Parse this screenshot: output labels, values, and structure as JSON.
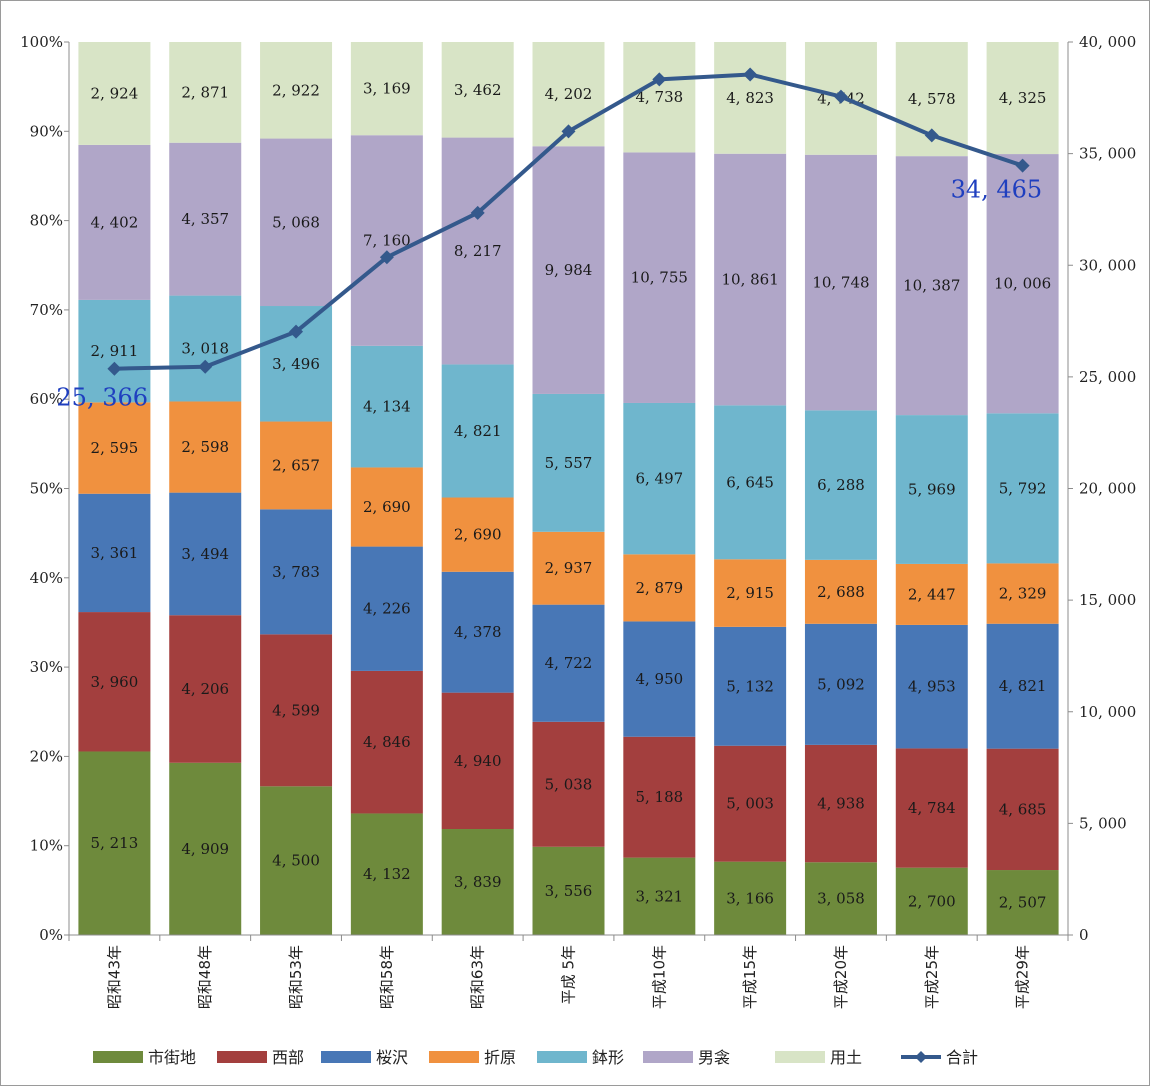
{
  "chart_data": {
    "type": "bar",
    "stacked": true,
    "normalized": true,
    "categories": [
      "昭和43年",
      "昭和48年",
      "昭和53年",
      "昭和58年",
      "昭和63年",
      "平成 5年",
      "平成10年",
      "平成15年",
      "平成20年",
      "平成25年",
      "平成29年"
    ],
    "series": [
      {
        "name": "市街地",
        "color": "#6e8a3c",
        "values": [
          5213,
          4909,
          4500,
          4132,
          3839,
          3556,
          3321,
          3166,
          3058,
          2700,
          2507
        ],
        "labels": [
          "5, 213",
          "4, 909",
          "4, 500",
          "4, 132",
          "3, 839",
          "3, 556",
          "3, 321",
          "3, 166",
          "3, 058",
          "2, 700",
          "2, 507"
        ]
      },
      {
        "name": "西部",
        "color": "#a33f3e",
        "values": [
          3960,
          4206,
          4599,
          4846,
          4940,
          5038,
          5188,
          5003,
          4938,
          4784,
          4685
        ],
        "labels": [
          "3, 960",
          "4, 206",
          "4, 599",
          "4, 846",
          "4, 940",
          "5, 038",
          "5, 188",
          "5, 003",
          "4, 938",
          "4, 784",
          "4, 685"
        ]
      },
      {
        "name": "桜沢",
        "color": "#4877b6",
        "values": [
          3361,
          3494,
          3783,
          4226,
          4378,
          4722,
          4950,
          5132,
          5092,
          4953,
          4821
        ],
        "labels": [
          "3, 361",
          "3, 494",
          "3, 783",
          "4, 226",
          "4, 378",
          "4, 722",
          "4, 950",
          "5, 132",
          "5, 092",
          "4, 953",
          "4, 821"
        ]
      },
      {
        "name": "折原",
        "color": "#f0913f",
        "values": [
          2595,
          2598,
          2657,
          2690,
          2690,
          2937,
          2879,
          2915,
          2688,
          2447,
          2329
        ],
        "labels": [
          "2, 595",
          "2, 598",
          "2, 657",
          "2, 690",
          "2, 690",
          "2, 937",
          "2, 879",
          "2, 915",
          "2, 688",
          "2, 447",
          "2, 329"
        ]
      },
      {
        "name": "鉢形",
        "color": "#6fb6cd",
        "values": [
          2911,
          3018,
          3496,
          4134,
          4821,
          5557,
          6497,
          6645,
          6288,
          5969,
          5792
        ],
        "labels": [
          "2, 911",
          "3, 018",
          "3, 496",
          "4, 134",
          "4, 821",
          "5, 557",
          "6, 497",
          "6, 645",
          "6, 288",
          "5, 969",
          "5, 792"
        ]
      },
      {
        "name": "男衾",
        "color": "#b0a6c8",
        "values": [
          4402,
          4357,
          5068,
          7160,
          8217,
          9984,
          10755,
          10861,
          10748,
          10387,
          10006
        ],
        "labels": [
          "4, 402",
          "4, 357",
          "5, 068",
          "7, 160",
          "8, 217",
          "9, 984",
          "10, 755",
          "10, 861",
          "10, 748",
          "10, 387",
          "10, 006"
        ]
      },
      {
        "name": "用土",
        "color": "#d8e4c6",
        "values": [
          2924,
          2871,
          2922,
          3169,
          3462,
          4202,
          4738,
          4823,
          4742,
          4578,
          4325
        ],
        "labels": [
          "2, 924",
          "2, 871",
          "2, 922",
          "3, 169",
          "3, 462",
          "4, 202",
          "4, 738",
          "4, 823",
          "4, 742",
          "4, 578",
          "4, 325"
        ]
      }
    ],
    "line": {
      "name": "合計",
      "color": "#34598c",
      "axis": "right",
      "values": [
        25366,
        25453,
        27025,
        30357,
        32347,
        35996,
        38328,
        38545,
        37554,
        35818,
        34465
      ]
    },
    "callouts": [
      {
        "index": 0,
        "text": "25, 366"
      },
      {
        "index": 10,
        "text": "34, 465"
      }
    ],
    "left_axis": {
      "min": 0,
      "max": 100,
      "ticks": [
        "0%",
        "10%",
        "20%",
        "30%",
        "40%",
        "50%",
        "60%",
        "70%",
        "80%",
        "90%",
        "100%"
      ]
    },
    "right_axis": {
      "min": 0,
      "max": 40000,
      "ticks": [
        "0",
        "5, 000",
        "10, 000",
        "15, 000",
        "20, 000",
        "25, 000",
        "30, 000",
        "35, 000",
        "40, 000"
      ]
    },
    "legend_position": "bottom",
    "grid": false
  }
}
